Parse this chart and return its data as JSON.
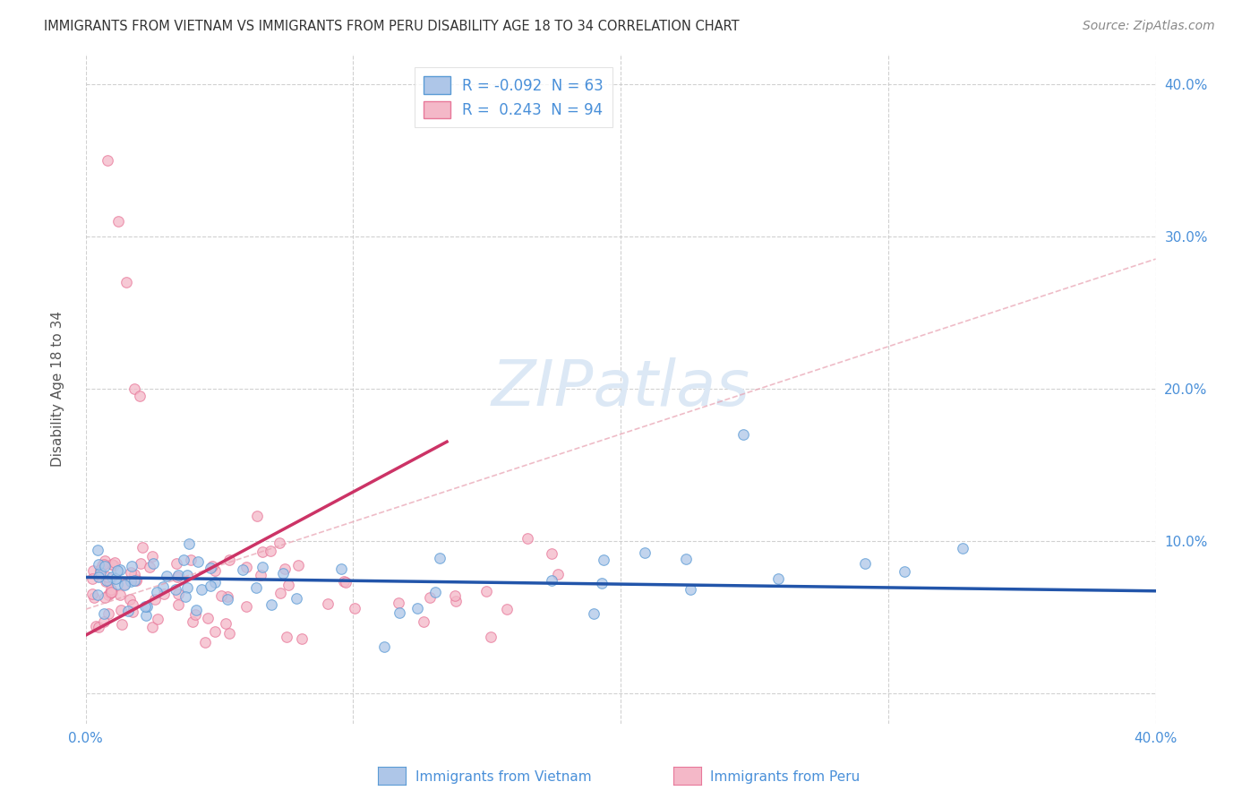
{
  "title": "IMMIGRANTS FROM VIETNAM VS IMMIGRANTS FROM PERU DISABILITY AGE 18 TO 34 CORRELATION CHART",
  "source": "Source: ZipAtlas.com",
  "ylabel": "Disability Age 18 to 34",
  "xmin": 0.0,
  "xmax": 0.4,
  "ymin": -0.02,
  "ymax": 0.42,
  "legend_vietnam_R": "-0.092",
  "legend_vietnam_N": "63",
  "legend_peru_R": "0.243",
  "legend_peru_N": "94",
  "color_vietnam_fill": "#aec6e8",
  "color_vietnam_edge": "#5b9bd5",
  "color_peru_fill": "#f4b8c8",
  "color_peru_edge": "#e8789a",
  "color_vietnam_line": "#2255aa",
  "color_peru_line": "#cc3366",
  "color_dashed": "#e8a0b0",
  "background_color": "#ffffff",
  "grid_color": "#cccccc",
  "title_color": "#333333",
  "source_color": "#888888",
  "axis_label_color": "#4a90d9",
  "watermark_color": "#dce8f5"
}
